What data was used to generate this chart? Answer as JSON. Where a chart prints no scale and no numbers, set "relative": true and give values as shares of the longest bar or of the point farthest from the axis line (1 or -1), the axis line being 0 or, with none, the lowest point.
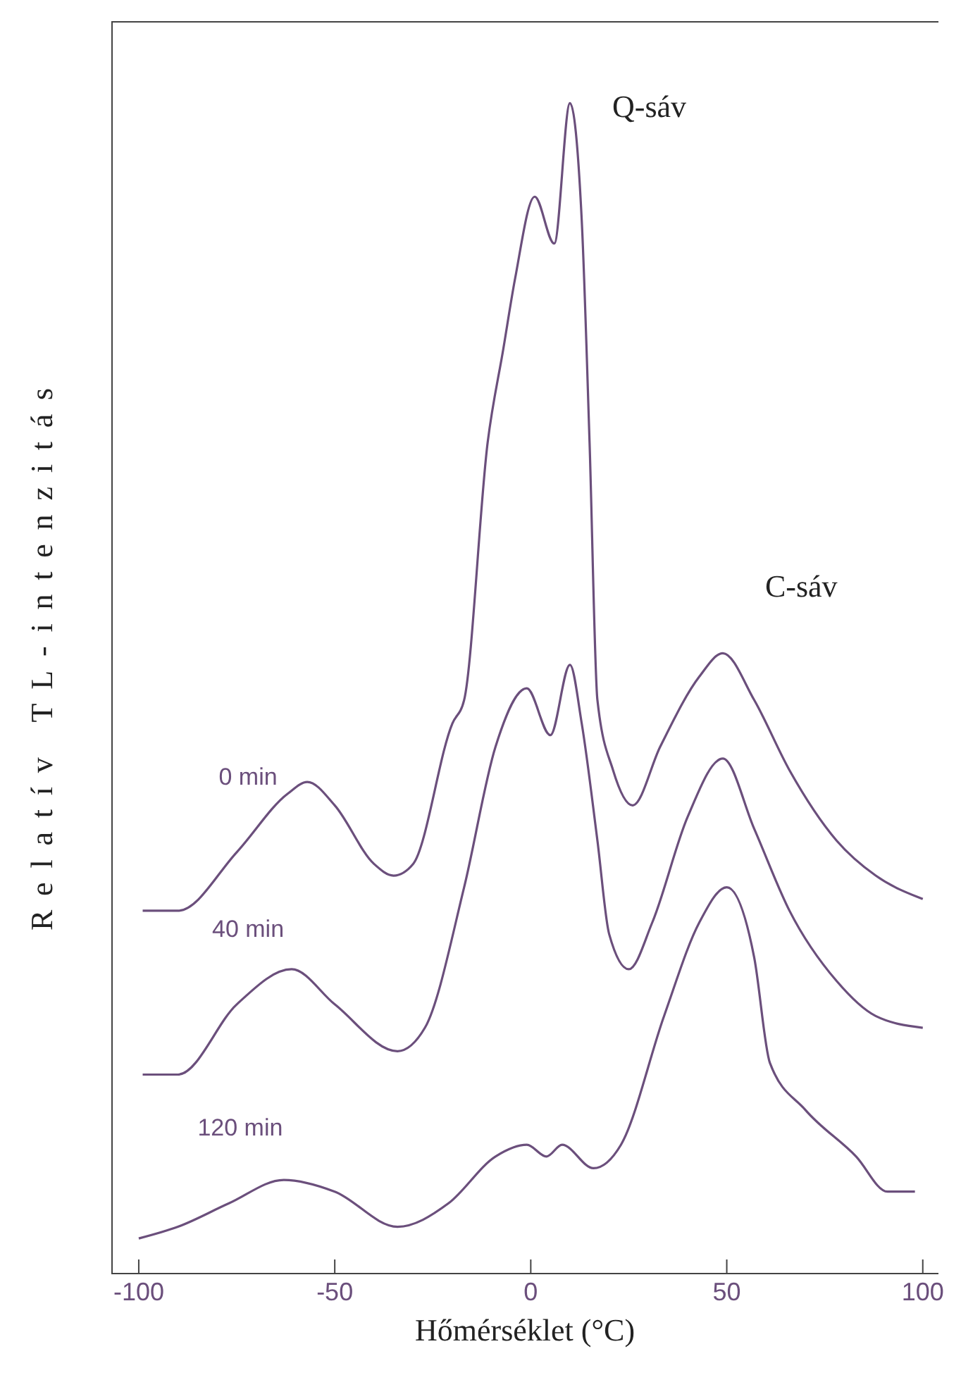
{
  "chart_data": {
    "type": "line",
    "relative": true,
    "xlabel": "Hőmérséklet (°C)",
    "ylabel": "Relatív TL-intenzitás",
    "xlim": [
      -107,
      104
    ],
    "xticks": [
      -100,
      -50,
      0,
      50,
      100
    ],
    "marker": "none",
    "line_style": "solid",
    "annotations": [
      {
        "text": "Q-sáv",
        "x": 10,
        "y": 1.0
      },
      {
        "text": "C-sáv",
        "x": 49,
        "y": 0.53
      }
    ],
    "series": [
      {
        "name": "0 min",
        "color": "#6b4f7c",
        "x": [
          -99,
          -90,
          -75,
          -62,
          -57,
          -50,
          -40,
          -35,
          -30,
          -20,
          -17,
          -11,
          -7,
          -4,
          1,
          6,
          10,
          13,
          15,
          17,
          21,
          26,
          33,
          43,
          49,
          57,
          66,
          78,
          88,
          100
        ],
        "values": [
          0.31,
          0.31,
          0.36,
          0.41,
          0.42,
          0.4,
          0.35,
          0.34,
          0.35,
          0.47,
          0.49,
          0.71,
          0.79,
          0.85,
          0.92,
          0.88,
          1.0,
          0.9,
          0.71,
          0.49,
          0.43,
          0.4,
          0.45,
          0.51,
          0.53,
          0.49,
          0.43,
          0.37,
          0.34,
          0.32
        ]
      },
      {
        "name": "40 min",
        "color": "#6b4f7c",
        "x": [
          -99,
          -90,
          -75,
          -61,
          -50,
          -34,
          -27,
          -17,
          -9,
          -1,
          5,
          10,
          13,
          17,
          20,
          25,
          31,
          40,
          49,
          57,
          66,
          78,
          88,
          100
        ],
        "values": [
          0.17,
          0.17,
          0.23,
          0.26,
          0.23,
          0.19,
          0.21,
          0.33,
          0.45,
          0.5,
          0.46,
          0.52,
          0.47,
          0.37,
          0.29,
          0.26,
          0.3,
          0.39,
          0.44,
          0.38,
          0.31,
          0.25,
          0.22,
          0.21
        ]
      },
      {
        "name": "120 min",
        "color": "#6b4f7c",
        "x": [
          -100,
          -90,
          -77,
          -63,
          -50,
          -34,
          -21,
          -9,
          -1,
          4,
          8,
          16,
          23,
          34,
          43,
          50,
          57,
          61,
          70,
          83,
          91,
          98
        ],
        "values": [
          0.03,
          0.04,
          0.06,
          0.08,
          0.07,
          0.04,
          0.06,
          0.1,
          0.11,
          0.1,
          0.11,
          0.09,
          0.11,
          0.22,
          0.3,
          0.33,
          0.27,
          0.18,
          0.14,
          0.1,
          0.07,
          0.07
        ]
      }
    ]
  }
}
